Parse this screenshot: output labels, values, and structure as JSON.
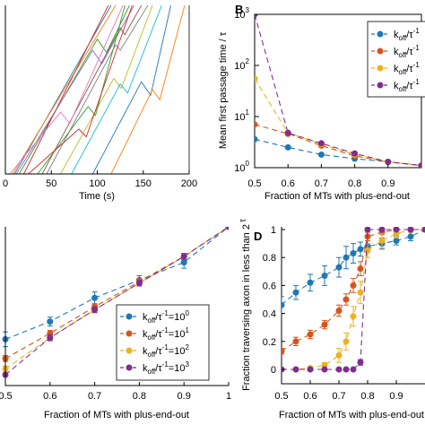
{
  "panel_letters": [
    "B",
    "D"
  ],
  "chart_data": [
    {
      "id": "A",
      "type": "line",
      "title": "",
      "xlabel": "Time (s)",
      "ylabel": "",
      "xlim": [
        0,
        200
      ],
      "xticks": [
        "0",
        "50",
        "100",
        "150",
        "200"
      ],
      "grid": false,
      "colors": [
        "#1f77b4",
        "#ff7f0e",
        "#2ca02c",
        "#d62728",
        "#9467bd",
        "#8c564b",
        "#e377c2",
        "#7f7f7f",
        "#bcbd22",
        "#17becf"
      ],
      "series": [
        {
          "points": [
            [
              5,
              0
            ],
            [
              10,
              0
            ],
            [
              115,
              150
            ]
          ]
        },
        {
          "points": [
            [
              0,
              0
            ],
            [
              8,
              0
            ],
            [
              120,
              150
            ]
          ]
        },
        {
          "points": [
            [
              2,
              0
            ],
            [
              15,
              0
            ],
            [
              100,
              120
            ],
            [
              110,
              108
            ],
            [
              135,
              150
            ]
          ]
        },
        {
          "points": [
            [
              10,
              0
            ],
            [
              20,
              0
            ],
            [
              112,
              150
            ]
          ]
        },
        {
          "points": [
            [
              0,
              0
            ],
            [
              12,
              0
            ],
            [
              95,
              110
            ],
            [
              105,
              98
            ],
            [
              140,
              150
            ]
          ]
        },
        {
          "points": [
            [
              25,
              0
            ],
            [
              40,
              0
            ],
            [
              125,
              130
            ],
            [
              130,
              124
            ],
            [
              148,
              150
            ]
          ]
        },
        {
          "points": [
            [
              0,
              0
            ],
            [
              5,
              0
            ],
            [
              60,
              55
            ],
            [
              70,
              45
            ],
            [
              128,
              150
            ]
          ]
        },
        {
          "points": [
            [
              30,
              0
            ],
            [
              45,
              0
            ],
            [
              120,
              115
            ],
            [
              125,
              110
            ],
            [
              155,
              150
            ]
          ]
        },
        {
          "points": [
            [
              50,
              0
            ],
            [
              60,
              0
            ],
            [
              118,
              85
            ],
            [
              126,
              76
            ],
            [
              160,
              150
            ]
          ]
        },
        {
          "points": [
            [
              60,
              0
            ],
            [
              72,
              0
            ],
            [
              125,
              80
            ],
            [
              133,
              72
            ],
            [
              170,
              150
            ]
          ]
        },
        {
          "points": [
            [
              80,
              0
            ],
            [
              95,
              0
            ],
            [
              148,
              82
            ],
            [
              158,
              70
            ],
            [
              180,
              150
            ]
          ]
        },
        {
          "points": [
            [
              100,
              0
            ],
            [
              115,
              0
            ],
            [
              160,
              75
            ],
            [
              168,
              66
            ],
            [
              195,
              150
            ]
          ]
        },
        {
          "points": [
            [
              20,
              0
            ],
            [
              35,
              0
            ],
            [
              90,
              60
            ],
            [
              98,
              52
            ],
            [
              130,
              150
            ]
          ]
        },
        {
          "points": [
            [
              15,
              0
            ],
            [
              25,
              0
            ],
            [
              80,
              40
            ],
            [
              88,
              33
            ],
            [
              138,
              150
            ]
          ]
        }
      ]
    },
    {
      "id": "B",
      "type": "line",
      "title": "",
      "xlabel": "Fraction of MTs with plus-end-out",
      "ylabel": "Mean first passage time / τ",
      "yscale": "log",
      "xlim": [
        0.5,
        1.0
      ],
      "ylim": [
        1,
        1000
      ],
      "xticks": [
        "0.5",
        "0.6",
        "0.7",
        "0.8",
        "0.9"
      ],
      "yticks": [
        "10",
        "10",
        "10",
        "10"
      ],
      "ytick_exponents": [
        "0",
        "1",
        "2",
        "3"
      ],
      "legend_position": "top-right",
      "grid": false,
      "series": [
        {
          "legend_base": "k",
          "legend_sub": "off",
          "legend_mid": "/τ",
          "legend_sup": "-1",
          "color": "#1f77b4",
          "x": [
            0.5,
            0.6,
            0.7,
            0.8,
            0.9,
            1.0
          ],
          "y": [
            3.6,
            2.5,
            1.8,
            1.5,
            1.3,
            1.1
          ]
        },
        {
          "legend_base": "k",
          "legend_sub": "off",
          "legend_mid": "/τ",
          "legend_sup": "-1",
          "color": "#d95319",
          "x": [
            0.5,
            0.6,
            0.7,
            0.8,
            0.9,
            1.0
          ],
          "y": [
            7.0,
            4.6,
            2.7,
            1.7,
            1.3,
            1.1
          ]
        },
        {
          "legend_base": "k",
          "legend_sub": "off",
          "legend_mid": "/τ",
          "legend_sup": "-1",
          "color": "#edb120",
          "x": [
            0.5,
            0.6,
            0.7,
            0.8,
            0.9,
            1.0
          ],
          "y": [
            55,
            4.8,
            2.9,
            1.8,
            1.3,
            1.1
          ]
        },
        {
          "legend_base": "k",
          "legend_sub": "off",
          "legend_mid": "/τ",
          "legend_sup": "-1",
          "color": "#7e2f8e",
          "x": [
            0.5,
            0.6,
            0.7,
            0.8,
            0.9,
            1.0
          ],
          "y": [
            1000,
            4.8,
            3.0,
            1.9,
            1.3,
            1.1
          ]
        }
      ]
    },
    {
      "id": "C",
      "type": "line",
      "title": "",
      "xlabel": "Fraction of MTs with plus-end-out",
      "ylabel": "",
      "xlim": [
        0.5,
        1.0
      ],
      "ylim": [
        0,
        1
      ],
      "xticks": [
        "0.5",
        "0.6",
        "0.7",
        "0.8",
        "0.9",
        "1"
      ],
      "legend_position": "bottom-right",
      "grid": false,
      "series": [
        {
          "legend_base": "k",
          "legend_sub": "off",
          "legend_mid": "/τ",
          "legend_sup": "-1",
          "legend_eq": "=10",
          "legend_exp": "0",
          "color": "#1f77b4",
          "x": [
            0.5,
            0.6,
            0.7,
            0.8,
            0.9,
            1.0
          ],
          "y": [
            0.24,
            0.36,
            0.52,
            0.64,
            0.76,
            1.0
          ],
          "err": [
            0.05,
            0.03,
            0.04,
            0.03,
            0.04,
            0
          ]
        },
        {
          "legend_base": "k",
          "legend_sub": "off",
          "legend_mid": "/τ",
          "legend_sup": "-1",
          "legend_eq": "=10",
          "legend_exp": "1",
          "color": "#d95319",
          "x": [
            0.5,
            0.6,
            0.7,
            0.8,
            0.9,
            1.0
          ],
          "y": [
            0.11,
            0.28,
            0.46,
            0.63,
            0.8,
            1.0
          ],
          "err": [
            0.02,
            0.02,
            0.02,
            0.02,
            0.02,
            0
          ]
        },
        {
          "legend_base": "k",
          "legend_sub": "off",
          "legend_mid": "/τ",
          "legend_sup": "-1",
          "legend_eq": "=10",
          "legend_exp": "2",
          "color": "#edb120",
          "x": [
            0.5,
            0.6,
            0.7,
            0.8,
            0.9,
            1.0
          ],
          "y": [
            0.04,
            0.25,
            0.44,
            0.62,
            0.8,
            1.0
          ],
          "err": [
            0.02,
            0.02,
            0.02,
            0.02,
            0.02,
            0
          ]
        },
        {
          "legend_base": "k",
          "legend_sub": "off",
          "legend_mid": "/τ",
          "legend_sup": "-1",
          "legend_eq": "=10",
          "legend_exp": "3",
          "color": "#7e2f8e",
          "x": [
            0.5,
            0.6,
            0.7,
            0.8,
            0.9,
            1.0
          ],
          "y": [
            0.0,
            0.25,
            0.44,
            0.62,
            0.8,
            1.0
          ],
          "err": [
            0.01,
            0.02,
            0.02,
            0.02,
            0.02,
            0
          ]
        }
      ]
    },
    {
      "id": "D",
      "type": "line",
      "title": "",
      "xlabel": "Fraction of MTs with plus-end-out",
      "ylabel": "Fraction traversing axon in less than 2",
      "ylabel_suffix": "τ",
      "xlim": [
        0.5,
        1.0
      ],
      "ylim": [
        0,
        1
      ],
      "xticks": [
        "0.5",
        "0.6",
        "0.7",
        "0.8",
        "0.9"
      ],
      "yticks": [
        "0",
        "0.2",
        "0.4",
        "0.6",
        "0.8",
        "1"
      ],
      "grid": false,
      "series": [
        {
          "color": "#1f77b4",
          "x": [
            0.5,
            0.55,
            0.6,
            0.65,
            0.7,
            0.725,
            0.75,
            0.775,
            0.8,
            0.85,
            0.9,
            0.95,
            1.0
          ],
          "y": [
            0.46,
            0.55,
            0.62,
            0.67,
            0.73,
            0.8,
            0.83,
            0.86,
            0.88,
            0.9,
            0.92,
            0.95,
            1.0
          ],
          "err": [
            0.06,
            0.05,
            0.06,
            0.07,
            0.07,
            0.08,
            0.07,
            0.05,
            0.04,
            0.04,
            0.03,
            0.03,
            0
          ]
        },
        {
          "color": "#d95319",
          "x": [
            0.5,
            0.55,
            0.6,
            0.65,
            0.7,
            0.725,
            0.75,
            0.775,
            0.8,
            0.85,
            0.9,
            0.95,
            1.0
          ],
          "y": [
            0.13,
            0.2,
            0.25,
            0.32,
            0.42,
            0.5,
            0.6,
            0.72,
            0.95,
            0.98,
            1.0,
            1.0,
            1.0
          ],
          "err": [
            0.02,
            0.03,
            0.03,
            0.03,
            0.04,
            0.04,
            0.05,
            0.05,
            0.03,
            0.01,
            0.01,
            0,
            0
          ]
        },
        {
          "color": "#edb120",
          "x": [
            0.5,
            0.55,
            0.6,
            0.65,
            0.7,
            0.725,
            0.75,
            0.775,
            0.8,
            0.85,
            0.9,
            0.95,
            1.0
          ],
          "y": [
            0.0,
            0.0,
            0.01,
            0.03,
            0.1,
            0.2,
            0.38,
            0.55,
            0.85,
            0.92,
            0.97,
            1.0,
            1.0
          ],
          "err": [
            0,
            0,
            0.01,
            0.02,
            0.05,
            0.06,
            0.07,
            0.08,
            0.05,
            0.05,
            0.03,
            0.02,
            0
          ]
        },
        {
          "color": "#7e2f8e",
          "x": [
            0.5,
            0.55,
            0.6,
            0.65,
            0.7,
            0.725,
            0.75,
            0.775,
            0.8,
            0.85,
            0.9,
            0.95,
            1.0
          ],
          "y": [
            0.0,
            0.0,
            0.0,
            0.0,
            0.0,
            0.0,
            0.0,
            0.05,
            1.0,
            1.0,
            1.0,
            1.0,
            1.0
          ],
          "err": [
            0,
            0,
            0,
            0,
            0,
            0,
            0,
            0.02,
            0,
            0,
            0,
            0,
            0
          ]
        }
      ]
    }
  ]
}
